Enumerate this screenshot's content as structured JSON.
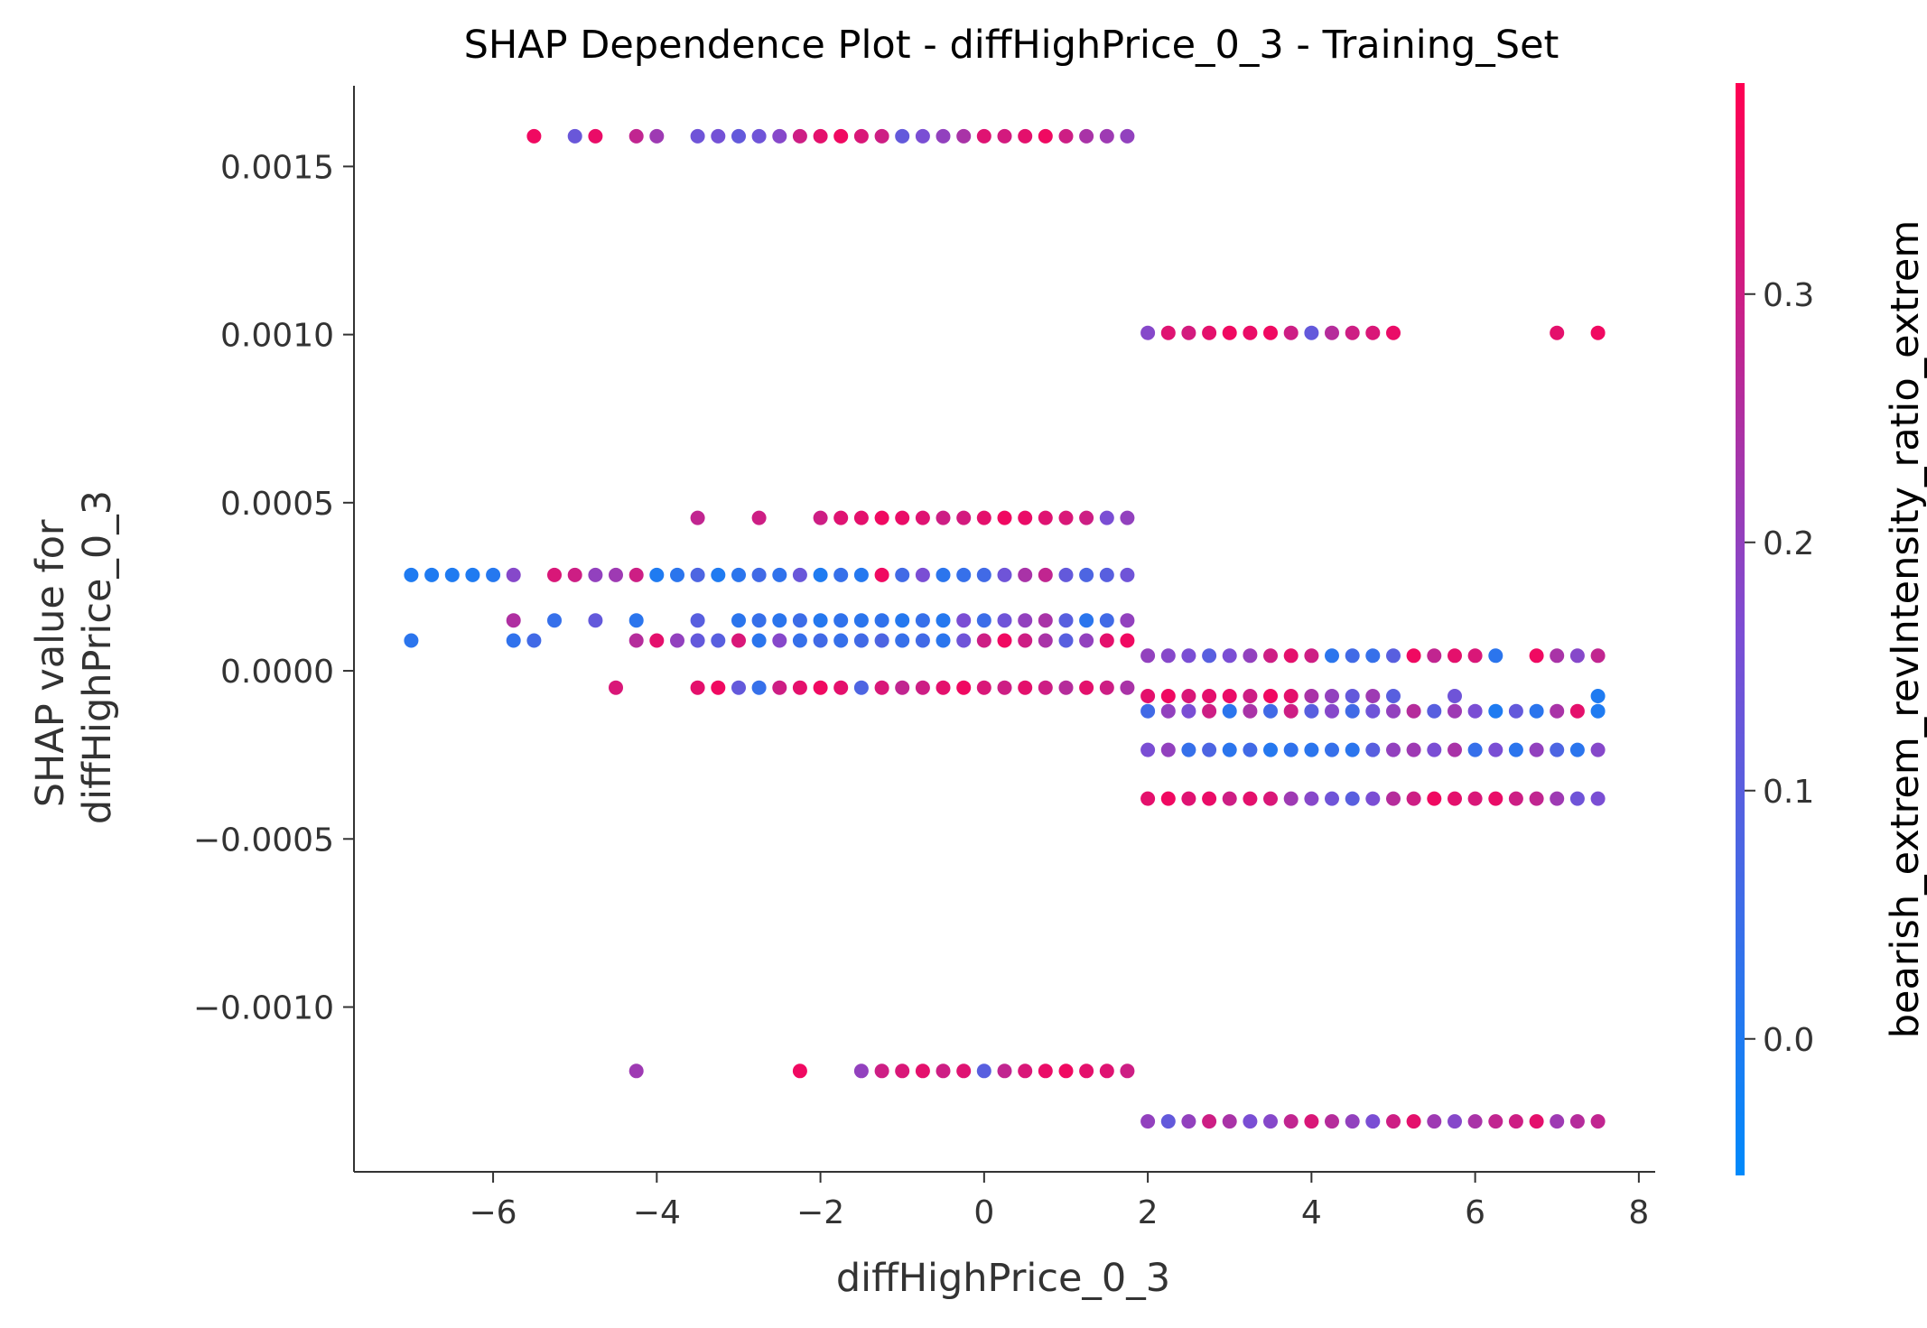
{
  "chart_data": {
    "type": "scatter",
    "title": "SHAP Dependence Plot - diffHighPrice_0_3 - Training_Set",
    "xlabel": "diffHighPrice_0_3",
    "ylabel_lines": [
      "SHAP value for",
      "diffHighPrice_0_3"
    ],
    "xlim": [
      -7.7,
      8.2
    ],
    "ylim": [
      -0.00149,
      0.00174
    ],
    "x_ticks": [
      -6,
      -4,
      -2,
      0,
      2,
      4,
      6,
      8
    ],
    "x_tick_labels": [
      "−6",
      "−4",
      "−2",
      "0",
      "2",
      "4",
      "6",
      "8"
    ],
    "y_ticks": [
      0.0015,
      0.001,
      0.0005,
      0.0,
      -0.0005,
      -0.001
    ],
    "y_tick_labels": [
      "0.0015",
      "0.0010",
      "0.0005",
      "0.0000",
      "−0.0005",
      "−0.0010"
    ],
    "grid": false,
    "colorbar": {
      "label": "bearish_extrem_revIntensity_ratio_extrem",
      "range": [
        -0.055,
        0.385
      ],
      "ticks": [
        0.0,
        0.1,
        0.2,
        0.3
      ],
      "tick_labels": [
        "0.0",
        "0.1",
        "0.2",
        "0.3"
      ],
      "low_color": "#008afb",
      "mid_color": "#7d4dd3",
      "high_color": "#ff0052"
    },
    "point_series": [
      {
        "y": 0.00159,
        "x": [
          -5.5,
          -5.0,
          -4.75,
          -4.25,
          -4.0,
          -3.5,
          -3.25,
          -3.0,
          -2.75,
          -2.5,
          -2.25,
          -2.0,
          -1.75,
          -1.5,
          -1.25,
          -1.0,
          -0.75,
          -0.5,
          -0.25,
          0.0,
          0.25,
          0.5,
          0.75,
          1.0,
          1.25,
          1.5,
          1.75
        ],
        "c": [
          0.36,
          0.13,
          0.35,
          0.28,
          0.22,
          0.14,
          0.15,
          0.12,
          0.14,
          0.18,
          0.3,
          0.34,
          0.36,
          0.32,
          0.3,
          0.12,
          0.16,
          0.2,
          0.24,
          0.33,
          0.31,
          0.34,
          0.36,
          0.3,
          0.24,
          0.22,
          0.2
        ]
      },
      {
        "y": 0.001005,
        "x": [
          2.0,
          2.25,
          2.5,
          2.75,
          3.0,
          3.25,
          3.5,
          3.75,
          4.0,
          4.25,
          4.5,
          4.75,
          5.0,
          7.0,
          7.5
        ],
        "c": [
          0.18,
          0.33,
          0.31,
          0.34,
          0.36,
          0.35,
          0.36,
          0.3,
          0.12,
          0.26,
          0.3,
          0.32,
          0.35,
          0.34,
          0.36
        ]
      },
      {
        "y": 0.000455,
        "x": [
          -3.5,
          -2.75,
          -2.0,
          -1.75,
          -1.5,
          -1.25,
          -1.0,
          -0.75,
          -0.5,
          -0.25,
          0.0,
          0.25,
          0.5,
          0.75,
          1.0,
          1.25,
          1.5,
          1.75
        ],
        "c": [
          0.28,
          0.3,
          0.3,
          0.33,
          0.34,
          0.36,
          0.35,
          0.33,
          0.3,
          0.31,
          0.34,
          0.36,
          0.35,
          0.33,
          0.32,
          0.3,
          0.16,
          0.2
        ]
      },
      {
        "y": 0.000285,
        "x": [
          -7.0,
          -6.75,
          -6.5,
          -6.25,
          -6.0,
          -5.75,
          -5.25,
          -5.0,
          -4.75,
          -4.5,
          -4.25,
          -4.0,
          -3.75,
          -3.5,
          -3.25,
          -3.0,
          -2.75,
          -2.5,
          -2.25,
          -2.0,
          -1.75,
          -1.5,
          -1.25,
          -1.0,
          -0.75,
          -0.5,
          -0.25,
          0.0,
          0.25,
          0.5,
          0.75,
          1.0,
          1.25,
          1.5,
          1.75
        ],
        "c": [
          0.0,
          0.0,
          0.0,
          0.0,
          0.01,
          0.18,
          0.32,
          0.3,
          0.2,
          0.22,
          0.3,
          0.0,
          0.02,
          0.08,
          0.0,
          0.02,
          0.06,
          0.03,
          0.13,
          0.0,
          0.04,
          0.01,
          0.36,
          0.06,
          0.16,
          0.02,
          0.04,
          0.06,
          0.14,
          0.24,
          0.28,
          0.12,
          0.08,
          0.1,
          0.14
        ]
      },
      {
        "y": 0.00015,
        "x": [
          -5.75,
          -5.25,
          -4.75,
          -4.25,
          -3.5,
          -3.0,
          -2.75,
          -2.5,
          -2.25,
          -2.0,
          -1.75,
          -1.5,
          -1.25,
          -1.0,
          -0.75,
          -0.5,
          -0.25,
          0.0,
          0.25,
          0.5,
          0.75,
          1.0,
          1.25,
          1.5,
          1.75
        ],
        "c": [
          0.25,
          0.04,
          0.12,
          0.02,
          0.1,
          0.02,
          0.04,
          0.02,
          0.05,
          0.01,
          0.03,
          0.02,
          0.03,
          0.01,
          0.04,
          0.01,
          0.16,
          0.05,
          0.14,
          0.2,
          0.24,
          0.1,
          0.02,
          0.06,
          0.2
        ]
      },
      {
        "y": 9e-05,
        "x": [
          -7.0,
          -5.75,
          -5.5,
          -4.25,
          -4.0,
          -3.75,
          -3.5,
          -3.25,
          -3.0,
          -2.75,
          -2.5,
          -2.25,
          -2.0,
          -1.75,
          -1.5,
          -1.25,
          -1.0,
          -0.75,
          -0.5,
          -0.25,
          0.0,
          0.25,
          0.5,
          0.75,
          1.0,
          1.25,
          1.5,
          1.75
        ],
        "c": [
          0.02,
          0.03,
          0.06,
          0.26,
          0.34,
          0.2,
          0.12,
          0.1,
          0.32,
          0.02,
          0.18,
          0.04,
          0.06,
          0.04,
          0.06,
          0.08,
          0.04,
          0.06,
          0.02,
          0.14,
          0.3,
          0.36,
          0.3,
          0.24,
          0.1,
          0.2,
          0.34,
          0.36
        ]
      },
      {
        "y": 4.5e-05,
        "x": [
          2.0,
          2.25,
          2.5,
          2.75,
          3.0,
          3.25,
          3.5,
          3.75,
          4.0,
          4.25,
          4.5,
          4.75,
          5.0,
          5.25,
          5.5,
          5.75,
          6.0,
          6.25,
          6.75,
          7.0,
          7.25,
          7.5
        ],
        "c": [
          0.2,
          0.18,
          0.16,
          0.1,
          0.16,
          0.2,
          0.3,
          0.34,
          0.3,
          0.02,
          0.06,
          0.04,
          0.1,
          0.36,
          0.28,
          0.34,
          0.32,
          0.02,
          0.36,
          0.24,
          0.18,
          0.28
        ]
      },
      {
        "y": -5e-05,
        "x": [
          -4.5,
          -3.5,
          -3.25,
          -3.0,
          -2.75,
          -2.5,
          -2.25,
          -2.0,
          -1.75,
          -1.5,
          -1.25,
          -1.0,
          -0.75,
          -0.5,
          -0.25,
          0.0,
          0.25,
          0.5,
          0.75,
          1.0,
          1.25,
          1.5,
          1.75
        ],
        "c": [
          0.32,
          0.34,
          0.36,
          0.12,
          0.04,
          0.3,
          0.34,
          0.36,
          0.34,
          0.08,
          0.32,
          0.28,
          0.3,
          0.34,
          0.36,
          0.32,
          0.3,
          0.34,
          0.3,
          0.26,
          0.34,
          0.3,
          0.24
        ]
      },
      {
        "y": -7.5e-05,
        "x": [
          2.0,
          2.25,
          2.5,
          2.75,
          3.0,
          3.25,
          3.5,
          3.75,
          4.0,
          4.25,
          4.5,
          4.75,
          5.0,
          5.75,
          7.5
        ],
        "c": [
          0.34,
          0.36,
          0.32,
          0.34,
          0.35,
          0.3,
          0.36,
          0.34,
          0.24,
          0.2,
          0.12,
          0.22,
          0.1,
          0.14,
          0.0
        ]
      },
      {
        "y": -0.00012,
        "x": [
          2.0,
          2.25,
          2.5,
          2.75,
          3.0,
          3.25,
          3.5,
          3.75,
          4.0,
          4.25,
          4.5,
          4.75,
          5.0,
          5.25,
          5.5,
          5.75,
          6.0,
          6.25,
          6.5,
          6.75,
          7.0,
          7.25,
          7.5
        ],
        "c": [
          0.06,
          0.2,
          0.16,
          0.3,
          0.02,
          0.24,
          0.06,
          0.3,
          0.1,
          0.18,
          0.06,
          0.14,
          0.2,
          0.26,
          0.1,
          0.22,
          0.16,
          0.0,
          0.12,
          0.02,
          0.24,
          0.34,
          0.0
        ]
      },
      {
        "y": -0.000235,
        "x": [
          2.0,
          2.25,
          2.5,
          2.75,
          3.0,
          3.25,
          3.5,
          3.75,
          4.0,
          4.25,
          4.5,
          4.75,
          5.0,
          5.25,
          5.5,
          5.75,
          6.0,
          6.25,
          6.5,
          6.75,
          7.0,
          7.25,
          7.5
        ],
        "c": [
          0.16,
          0.2,
          0.04,
          0.08,
          0.02,
          0.06,
          0.01,
          0.03,
          0.02,
          0.04,
          0.02,
          0.1,
          0.2,
          0.22,
          0.16,
          0.24,
          0.04,
          0.16,
          0.02,
          0.2,
          0.08,
          0.02,
          0.18
        ]
      },
      {
        "y": -0.00038,
        "x": [
          2.0,
          2.25,
          2.5,
          2.75,
          3.0,
          3.25,
          3.5,
          3.75,
          4.0,
          4.25,
          4.5,
          4.75,
          5.0,
          5.25,
          5.5,
          5.75,
          6.0,
          6.25,
          6.5,
          6.75,
          7.0,
          7.25,
          7.5
        ],
        "c": [
          0.34,
          0.36,
          0.33,
          0.35,
          0.3,
          0.34,
          0.32,
          0.22,
          0.18,
          0.14,
          0.1,
          0.16,
          0.26,
          0.3,
          0.36,
          0.34,
          0.32,
          0.35,
          0.3,
          0.28,
          0.22,
          0.14,
          0.16
        ]
      },
      {
        "y": -0.00119,
        "x": [
          -4.25,
          -2.25,
          -1.5,
          -1.25,
          -1.0,
          -0.75,
          -0.5,
          -0.25,
          0.0,
          0.25,
          0.5,
          0.75,
          1.0,
          1.25,
          1.5,
          1.75
        ],
        "c": [
          0.22,
          0.36,
          0.2,
          0.3,
          0.32,
          0.34,
          0.3,
          0.33,
          0.1,
          0.28,
          0.32,
          0.35,
          0.36,
          0.34,
          0.33,
          0.3
        ]
      },
      {
        "y": -0.00134,
        "x": [
          2.0,
          2.25,
          2.5,
          2.75,
          3.0,
          3.25,
          3.5,
          3.75,
          4.0,
          4.25,
          4.5,
          4.75,
          5.0,
          5.25,
          5.5,
          5.75,
          6.0,
          6.25,
          6.5,
          6.75,
          7.0,
          7.25,
          7.5
        ],
        "c": [
          0.2,
          0.12,
          0.2,
          0.3,
          0.24,
          0.16,
          0.18,
          0.28,
          0.32,
          0.26,
          0.2,
          0.16,
          0.3,
          0.34,
          0.22,
          0.18,
          0.24,
          0.28,
          0.3,
          0.34,
          0.22,
          0.26,
          0.28
        ]
      }
    ]
  }
}
